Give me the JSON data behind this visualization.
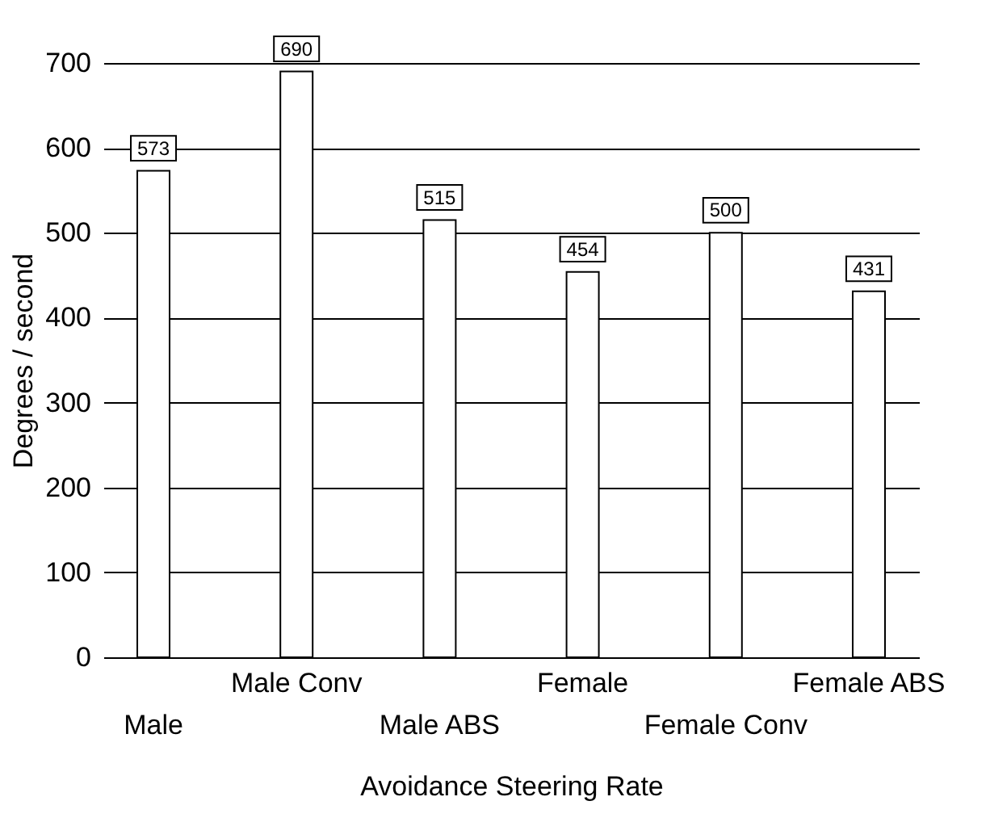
{
  "chart_data": {
    "type": "bar",
    "categories": [
      "Male",
      "Male Conv",
      "Male ABS",
      "Female",
      "Female Conv",
      "Female ABS"
    ],
    "values": [
      573,
      690,
      515,
      454,
      500,
      431
    ],
    "color": "#ffffff",
    "xlabel": "Avoidance Steering Rate",
    "ylabel": "Degrees / second",
    "ylim": [
      0,
      700
    ],
    "yticks": [
      0,
      100,
      200,
      300,
      400,
      500,
      600,
      700
    ],
    "grid": "y",
    "data_labels": true
  }
}
